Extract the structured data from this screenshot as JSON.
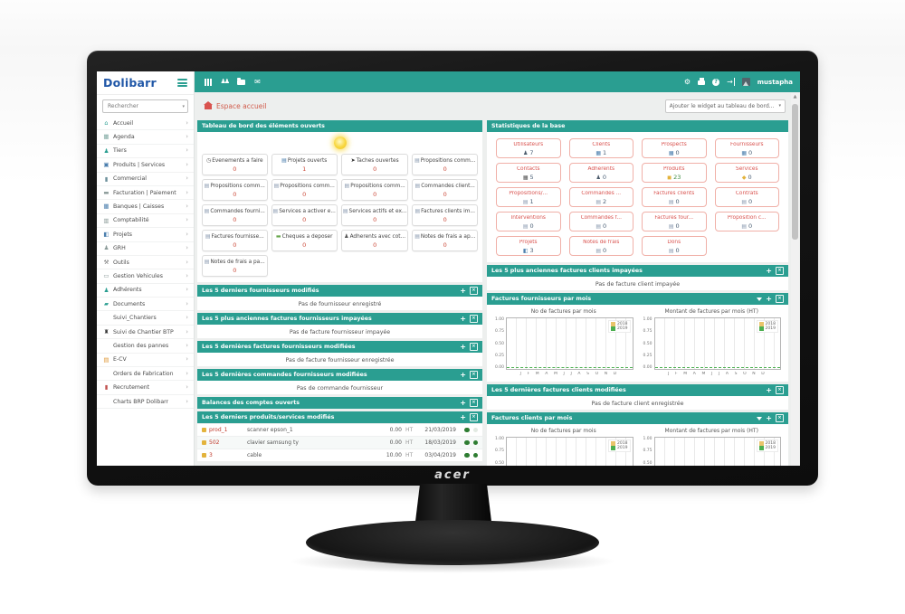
{
  "monitor": {
    "brand": "acer"
  },
  "colors": {
    "teal": "#2a9e91",
    "coral": "#d9534f",
    "stat_border": "#f0b0a8",
    "value_red": "#cc4b3b",
    "green_dot": "#2e7d32"
  },
  "ui": {
    "caret": "▾",
    "chevron": "›",
    "scroll_up": "▲"
  },
  "topbar": {
    "user": "mustapha",
    "glyphs": {
      "users": "♟♟",
      "mail": "✉",
      "gear": "⚙",
      "logout": "→"
    }
  },
  "sidebar": {
    "logo": "Dolibarr",
    "search_placeholder": "Rechercher",
    "items": [
      {
        "label": "Accueil",
        "glyph": "⌂",
        "color": "#2a9e91"
      },
      {
        "label": "Agenda",
        "glyph": "▦",
        "color": "#7fa8a1"
      },
      {
        "label": "Tiers",
        "glyph": "♟",
        "color": "#2a9e91"
      },
      {
        "label": "Produits | Services",
        "glyph": "▣",
        "color": "#4c7fae"
      },
      {
        "label": "Commercial",
        "glyph": "▮",
        "color": "#6b8f9a"
      },
      {
        "label": "Facturation | Paiement",
        "glyph": "▬",
        "color": "#8a9a98"
      },
      {
        "label": "Banques | Caisses",
        "glyph": "▦",
        "color": "#4c7fae"
      },
      {
        "label": "Comptabilité",
        "glyph": "▥",
        "color": "#8a9a98"
      },
      {
        "label": "Projets",
        "glyph": "◧",
        "color": "#4c7fae"
      },
      {
        "label": "GRH",
        "glyph": "♟",
        "color": "#8a9a98"
      },
      {
        "label": "Outils",
        "glyph": "⚒",
        "color": "#777777"
      },
      {
        "label": "Gestion Vehicules",
        "glyph": "▭",
        "color": "#8a9a98"
      },
      {
        "label": "Adhérents",
        "glyph": "♟",
        "color": "#2a9e91"
      },
      {
        "label": "Documents",
        "glyph": "▰",
        "color": "#2a9e91"
      },
      {
        "label": "Suivi_Chantiers",
        "glyph": "",
        "color": "#888888"
      },
      {
        "label": "Suivi de Chantier BTP",
        "glyph": "♜",
        "color": "#333333"
      },
      {
        "label": "Gestion des pannes",
        "glyph": "",
        "color": "#888888"
      },
      {
        "label": "E-CV",
        "glyph": "▤",
        "color": "#e09b3d"
      },
      {
        "label": "Orders de Fabrication",
        "glyph": "",
        "color": "#888888"
      },
      {
        "label": "Recrutement",
        "glyph": "▮",
        "color": "#c0504d"
      },
      {
        "label": "Charts BRP Dolibarr",
        "glyph": "",
        "color": "#888888"
      }
    ]
  },
  "breadcrumb": {
    "title": "Espace accueil"
  },
  "widget_selector": {
    "label": "Ajouter le widget au tableau de bord..."
  },
  "dashboard": {
    "title": "Tableau de bord des éléments ouverts",
    "widgets": [
      {
        "label": "Evenements a faire",
        "value": "0",
        "glyph": "◷",
        "color": "#555555"
      },
      {
        "label": "Projets ouverts",
        "value": "1",
        "glyph": "▤",
        "color": "#4c7fae"
      },
      {
        "label": "Taches ouvertes",
        "value": "0",
        "glyph": "➤",
        "color": "#333333"
      },
      {
        "label": "Propositions comm...",
        "value": "0",
        "glyph": "▤",
        "color": "#8a9bb0"
      },
      {
        "label": "Propositions comm...",
        "value": "0",
        "glyph": "▤",
        "color": "#8a9bb0"
      },
      {
        "label": "Propositions comm...",
        "value": "0",
        "glyph": "▤",
        "color": "#8a9bb0"
      },
      {
        "label": "Propositions comm...",
        "value": "0",
        "glyph": "▤",
        "color": "#8a9bb0"
      },
      {
        "label": "Commandes client...",
        "value": "0",
        "glyph": "▤",
        "color": "#8a9bb0"
      },
      {
        "label": "Commandes fourni...",
        "value": "0",
        "glyph": "▤",
        "color": "#8a9bb0"
      },
      {
        "label": "Services a activer e...",
        "value": "0",
        "glyph": "▤",
        "color": "#8a9bb0"
      },
      {
        "label": "Services actifs et ex...",
        "value": "0",
        "glyph": "▤",
        "color": "#8a9bb0"
      },
      {
        "label": "Factures clients im...",
        "value": "0",
        "glyph": "▤",
        "color": "#8a9bb0"
      },
      {
        "label": "Factures fournisse...",
        "value": "0",
        "glyph": "▤",
        "color": "#8a9bb0"
      },
      {
        "label": "Cheques a deposer",
        "value": "0",
        "glyph": "▬",
        "color": "#6aa84f"
      },
      {
        "label": "Adherents avec cot...",
        "value": "0",
        "glyph": "♟",
        "color": "#555555"
      },
      {
        "label": "Notes de frais a ap...",
        "value": "0",
        "glyph": "▤",
        "color": "#8a9bb0"
      },
      {
        "label": "Notes de frais a pa...",
        "value": "0",
        "glyph": "▤",
        "color": "#8a9bb0"
      }
    ]
  },
  "stats": {
    "title": "Statistiques de la base",
    "boxes": [
      {
        "label": "Utilisateurs",
        "value": "7",
        "glyph": "♟",
        "color": "#4b5b6b"
      },
      {
        "label": "Clients",
        "value": "1",
        "glyph": "▦",
        "color": "#4c7fae"
      },
      {
        "label": "Prospects",
        "value": "0",
        "glyph": "▦",
        "color": "#4c7fae"
      },
      {
        "label": "Fournisseurs",
        "value": "0",
        "glyph": "▦",
        "color": "#4c7fae"
      },
      {
        "label": "Contacts",
        "value": "5",
        "glyph": "▦",
        "color": "#555555"
      },
      {
        "label": "Adhérents",
        "value": "0",
        "glyph": "♟",
        "color": "#4b5b6b"
      },
      {
        "label": "Produits",
        "value": "23",
        "glyph": "◼",
        "color": "#e3b33c",
        "value_color": "#3d8b40"
      },
      {
        "label": "Services",
        "value": "0",
        "glyph": "◆",
        "color": "#e3b33c"
      },
      {
        "label": "Propositions/...",
        "value": "1",
        "glyph": "▤",
        "color": "#8a9bb0"
      },
      {
        "label": "Commandes ...",
        "value": "2",
        "glyph": "▤",
        "color": "#8a9bb0"
      },
      {
        "label": "Factures clients",
        "value": "0",
        "glyph": "▤",
        "color": "#8a9bb0"
      },
      {
        "label": "Contrats",
        "value": "0",
        "glyph": "▤",
        "color": "#8a9bb0"
      },
      {
        "label": "Interventions",
        "value": "0",
        "glyph": "▤",
        "color": "#8a9bb0"
      },
      {
        "label": "Commandes f...",
        "value": "0",
        "glyph": "▤",
        "color": "#8a9bb0"
      },
      {
        "label": "Factures four...",
        "value": "0",
        "glyph": "▤",
        "color": "#8a9bb0"
      },
      {
        "label": "Proposition c...",
        "value": "0",
        "glyph": "▤",
        "color": "#8a9bb0"
      },
      {
        "label": "Projets",
        "value": "3",
        "glyph": "◧",
        "color": "#4c7fae"
      },
      {
        "label": "Notes de frais",
        "value": "0",
        "glyph": "▤",
        "color": "#8a9bb0"
      },
      {
        "label": "Dons",
        "value": "0",
        "glyph": "▤",
        "color": "#8a9bb0"
      }
    ]
  },
  "left_sections": [
    {
      "title": "Les 5 derniers fournisseurs modifiés",
      "empty": "Pas de fournisseur enregistré"
    },
    {
      "title": "Les 5 plus anciennes factures fournisseurs impayées",
      "empty": "Pas de facture fournisseur impayée"
    },
    {
      "title": "Les 5 dernières factures fournisseurs modifiées",
      "empty": "Pas de facture fournisseur enregistrée"
    },
    {
      "title": "Les 5 dernières commandes fournisseurs modifiées",
      "empty": "Pas de commande fournisseur"
    }
  ],
  "balances": {
    "title": "Balances des comptes ouverts"
  },
  "products": {
    "title": "Les 5 derniers produits/services modifiés",
    "rows": [
      {
        "ref": "prod_1",
        "label": "scanner epson_1",
        "price": "0.00",
        "vat": "HT",
        "date": "21/03/2019"
      },
      {
        "ref": "502",
        "label": "clavier samsung ty",
        "price": "0.00",
        "vat": "HT",
        "date": "18/03/2019"
      },
      {
        "ref": "3",
        "label": "cable",
        "price": "10.00",
        "vat": "HT",
        "date": "03/04/2019"
      }
    ]
  },
  "right_sections": [
    {
      "title": "Les 5 plus anciennes factures clients impayées",
      "empty": "Pas de facture client impayée"
    },
    {
      "title": "Les 5 dernières factures clients modifiées",
      "empty": "Pas de facture client enregistrée"
    }
  ],
  "chart_panels": [
    {
      "title": "Factures fournisseurs par mois",
      "charts": [
        {
          "title": "No de factures par mois"
        },
        {
          "title": "Montant de factures par mois (HT)"
        }
      ]
    },
    {
      "title": "Factures clients par mois",
      "charts": [
        {
          "title": "No de factures par mois"
        },
        {
          "title": "Montant de factures par mois (HT)"
        }
      ]
    }
  ],
  "chart_axis": {
    "yticks": [
      "1.00",
      "0.75",
      "0.50",
      "0.25",
      "0.00"
    ],
    "months": "J F M A M J J A S O N D",
    "legend": [
      "2018",
      "2019"
    ],
    "legend_colors": {
      "y2018": "#e9c46a",
      "y2019": "#4caf50"
    }
  },
  "chart_data": [
    {
      "type": "line",
      "panel": "Factures fournisseurs par mois",
      "title": "No de factures par mois",
      "x": [
        "J",
        "F",
        "M",
        "A",
        "M",
        "J",
        "J",
        "A",
        "S",
        "O",
        "N",
        "D"
      ],
      "series": [
        {
          "name": "2018",
          "color": "#e9c46a",
          "values": [
            0,
            0,
            0,
            0,
            0,
            0,
            0,
            0,
            0,
            0,
            0,
            0
          ]
        },
        {
          "name": "2019",
          "color": "#4caf50",
          "values": [
            0,
            0,
            0,
            0,
            0,
            0,
            0,
            0,
            0,
            0,
            0,
            0
          ]
        }
      ],
      "ylim": [
        0,
        1
      ],
      "yticks": [
        0,
        0.25,
        0.5,
        0.75,
        1
      ],
      "legend_position": "top-right",
      "grid": true
    },
    {
      "type": "line",
      "panel": "Factures fournisseurs par mois",
      "title": "Montant de factures par mois (HT)",
      "x": [
        "J",
        "F",
        "M",
        "A",
        "M",
        "J",
        "J",
        "A",
        "S",
        "O",
        "N",
        "D"
      ],
      "series": [
        {
          "name": "2018",
          "color": "#e9c46a",
          "values": [
            0,
            0,
            0,
            0,
            0,
            0,
            0,
            0,
            0,
            0,
            0,
            0
          ]
        },
        {
          "name": "2019",
          "color": "#4caf50",
          "values": [
            0,
            0,
            0,
            0,
            0,
            0,
            0,
            0,
            0,
            0,
            0,
            0
          ]
        }
      ],
      "ylim": [
        0,
        1
      ],
      "yticks": [
        0,
        0.25,
        0.5,
        0.75,
        1
      ],
      "legend_position": "top-right",
      "grid": true
    },
    {
      "type": "line",
      "panel": "Factures clients par mois",
      "title": "No de factures par mois",
      "x": [
        "J",
        "F",
        "M",
        "A",
        "M",
        "J",
        "J",
        "A",
        "S",
        "O",
        "N",
        "D"
      ],
      "series": [
        {
          "name": "2018",
          "color": "#e9c46a",
          "values": [
            0,
            0,
            0,
            0,
            0,
            0,
            0,
            0,
            0,
            0,
            0,
            0
          ]
        },
        {
          "name": "2019",
          "color": "#4caf50",
          "values": [
            0,
            0,
            0,
            0,
            0,
            0,
            0,
            0,
            0,
            0,
            0,
            0
          ]
        }
      ],
      "ylim": [
        0,
        1
      ],
      "yticks": [
        0,
        0.25,
        0.5,
        0.75,
        1
      ],
      "legend_position": "top-right",
      "grid": true
    },
    {
      "type": "line",
      "panel": "Factures clients par mois",
      "title": "Montant de factures par mois (HT)",
      "x": [
        "J",
        "F",
        "M",
        "A",
        "M",
        "J",
        "J",
        "A",
        "S",
        "O",
        "N",
        "D"
      ],
      "series": [
        {
          "name": "2018",
          "color": "#e9c46a",
          "values": [
            0,
            0,
            0,
            0,
            0,
            0,
            0,
            0,
            0,
            0,
            0,
            0
          ]
        },
        {
          "name": "2019",
          "color": "#4caf50",
          "values": [
            0,
            0,
            0,
            0,
            0,
            0,
            0,
            0,
            0,
            0,
            0,
            0
          ]
        }
      ],
      "ylim": [
        0,
        1
      ],
      "yticks": [
        0,
        0.25,
        0.5,
        0.75,
        1
      ],
      "legend_position": "top-right",
      "grid": true
    }
  ]
}
